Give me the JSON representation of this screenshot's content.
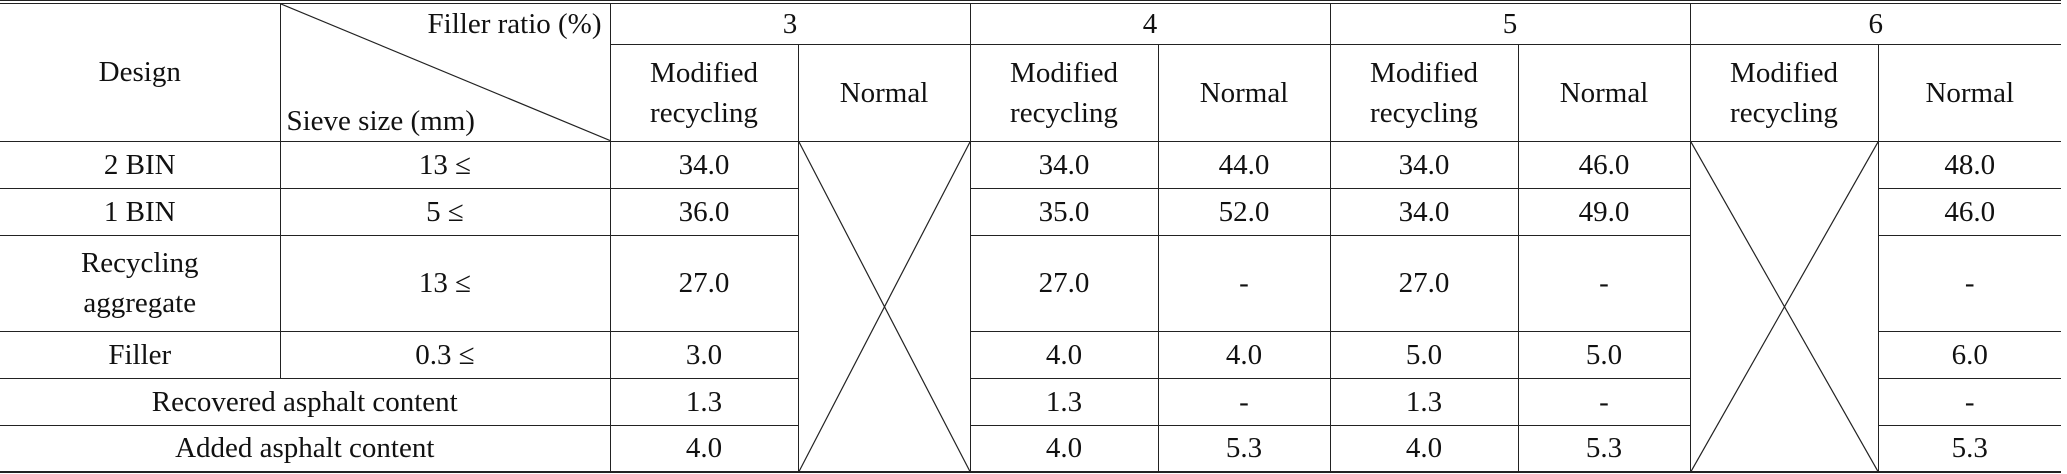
{
  "header": {
    "design": "Design",
    "filler_ratio": "Filler ratio (%)",
    "sieve_size": "Sieve size (mm)",
    "ratios": [
      "3",
      "4",
      "5",
      "6"
    ],
    "modified_line1": "Modified",
    "modified_line2": "recycling",
    "normal": "Normal"
  },
  "rows": [
    {
      "design": "2 BIN",
      "sieve": "13 ≤",
      "r3_mod": "34.0",
      "r4_mod": "34.0",
      "r4_norm": "44.0",
      "r5_mod": "34.0",
      "r5_norm": "46.0",
      "r6_norm": "48.0"
    },
    {
      "design": "1 BIN",
      "sieve": "5 ≤",
      "r3_mod": "36.0",
      "r4_mod": "35.0",
      "r4_norm": "52.0",
      "r5_mod": "34.0",
      "r5_norm": "49.0",
      "r6_norm": "46.0"
    },
    {
      "design_line1": "Recycling",
      "design_line2": "aggregate",
      "sieve": "13 ≤",
      "r3_mod": "27.0",
      "r4_mod": "27.0",
      "r4_norm": "-",
      "r5_mod": "27.0",
      "r5_norm": "-",
      "r6_norm": "-"
    },
    {
      "design": "Filler",
      "sieve": "0.3 ≤",
      "r3_mod": "3.0",
      "r4_mod": "4.0",
      "r4_norm": "4.0",
      "r5_mod": "5.0",
      "r5_norm": "5.0",
      "r6_norm": "6.0"
    },
    {
      "design": "Recovered asphalt content",
      "r3_mod": "1.3",
      "r4_mod": "1.3",
      "r4_norm": "-",
      "r5_mod": "1.3",
      "r5_norm": "-",
      "r6_norm": "-"
    },
    {
      "design": "Added asphalt content",
      "r3_mod": "4.0",
      "r4_mod": "4.0",
      "r4_norm": "5.3",
      "r5_mod": "4.0",
      "r5_norm": "5.3",
      "r6_norm": "5.3"
    }
  ]
}
